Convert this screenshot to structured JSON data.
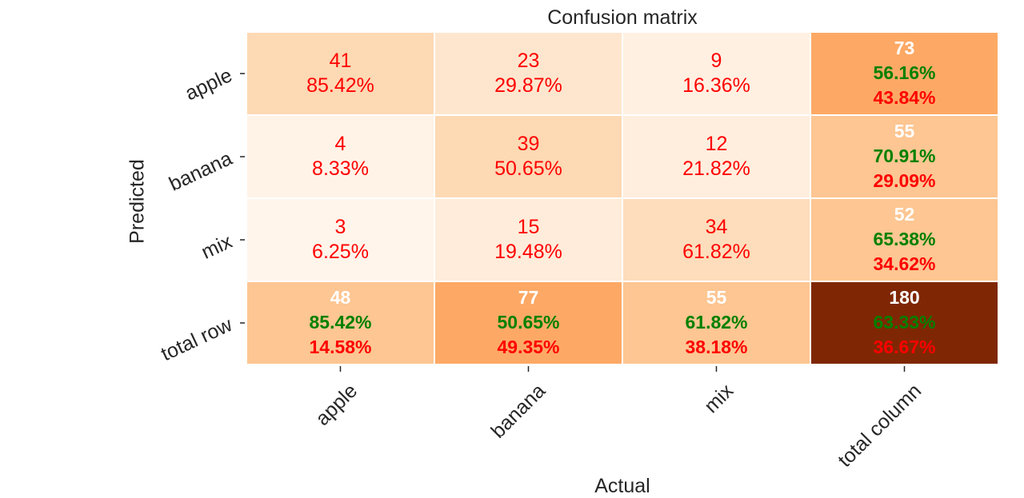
{
  "chart_data": {
    "type": "heatmap",
    "title": "Confusion matrix",
    "xlabel": "Actual",
    "ylabel": "Predicted",
    "x_categories": [
      "apple",
      "banana",
      "mix",
      "total column"
    ],
    "y_categories": [
      "apple",
      "banana",
      "mix",
      "total row"
    ],
    "colormap": "Oranges",
    "cells": [
      [
        {
          "count": "41",
          "pct": "85.42%",
          "fill": "#fdd9b4"
        },
        {
          "count": "23",
          "pct": "29.87%",
          "fill": "#fee6ce"
        },
        {
          "count": "9",
          "pct": "16.36%",
          "fill": "#fff0e2"
        },
        {
          "count": "73",
          "correct": "56.16%",
          "wrong": "43.84%",
          "fill": "#fda965"
        }
      ],
      [
        {
          "count": "4",
          "pct": "8.33%",
          "fill": "#fff3e7"
        },
        {
          "count": "39",
          "pct": "50.65%",
          "fill": "#fdd9b4"
        },
        {
          "count": "12",
          "pct": "21.82%",
          "fill": "#ffeede"
        },
        {
          "count": "55",
          "correct": "70.91%",
          "wrong": "29.09%",
          "fill": "#fdc692"
        }
      ],
      [
        {
          "count": "3",
          "pct": "6.25%",
          "fill": "#fff5eb"
        },
        {
          "count": "15",
          "pct": "19.48%",
          "fill": "#ffecda"
        },
        {
          "count": "34",
          "pct": "61.82%",
          "fill": "#fdddbb"
        },
        {
          "count": "52",
          "correct": "65.38%",
          "wrong": "34.62%",
          "fill": "#fdc692"
        }
      ],
      [
        {
          "count": "48",
          "correct": "85.42%",
          "wrong": "14.58%",
          "fill": "#fdc692"
        },
        {
          "count": "77",
          "correct": "50.65%",
          "wrong": "49.35%",
          "fill": "#fda965"
        },
        {
          "count": "55",
          "correct": "61.82%",
          "wrong": "38.18%",
          "fill": "#fdc692"
        },
        {
          "count": "180",
          "correct": "63.33%",
          "wrong": "36.67%",
          "fill": "#7f2704"
        }
      ]
    ],
    "colors": {
      "cell_text": "#ff0000",
      "total_count": "#ffffff",
      "total_correct": "#008000",
      "total_wrong": "#ff0000",
      "axis_text": "#262626"
    }
  }
}
